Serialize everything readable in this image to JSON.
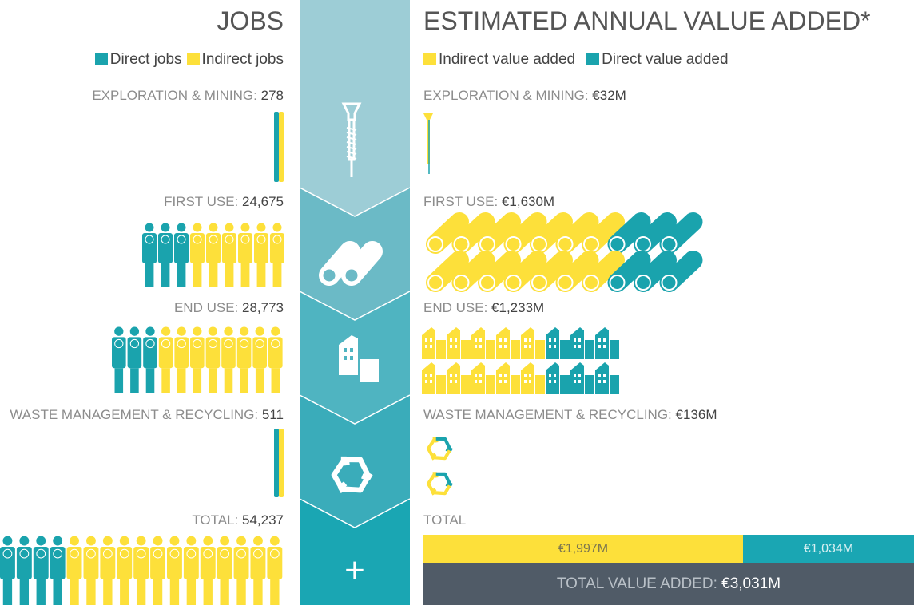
{
  "jobs": {
    "title": "JOBS",
    "legend": [
      "Direct jobs",
      "Indirect jobs"
    ],
    "rows": [
      {
        "label": "EXPLORATION & MINING:",
        "value": "278"
      },
      {
        "label": "FIRST USE:",
        "value": "24,675"
      },
      {
        "label": "END USE:",
        "value": "28,773"
      },
      {
        "label": "WASTE MANAGEMENT & RECYCLING:",
        "value": "511"
      }
    ],
    "total": {
      "label": "TOTAL:",
      "value": "54,237"
    }
  },
  "value_added": {
    "title": "ESTIMATED ANNUAL VALUE ADDED*",
    "legend": [
      "Indirect value added",
      "Direct value added"
    ],
    "rows": [
      {
        "label": "EXPLORATION & MINING:",
        "value": "€32M"
      },
      {
        "label": "FIRST USE:",
        "value": "€1,630M"
      },
      {
        "label": "END USE:",
        "value": "€1,233M"
      },
      {
        "label": "WASTE MANAGEMENT & RECYCLING:",
        "value": "€136M"
      }
    ],
    "total_label": "TOTAL",
    "indirect": "€1,997M",
    "direct": "€1,034M",
    "total_value_label": "TOTAL VALUE ADDED:",
    "total_value": "€3,031M"
  },
  "center_plus": "+"
}
